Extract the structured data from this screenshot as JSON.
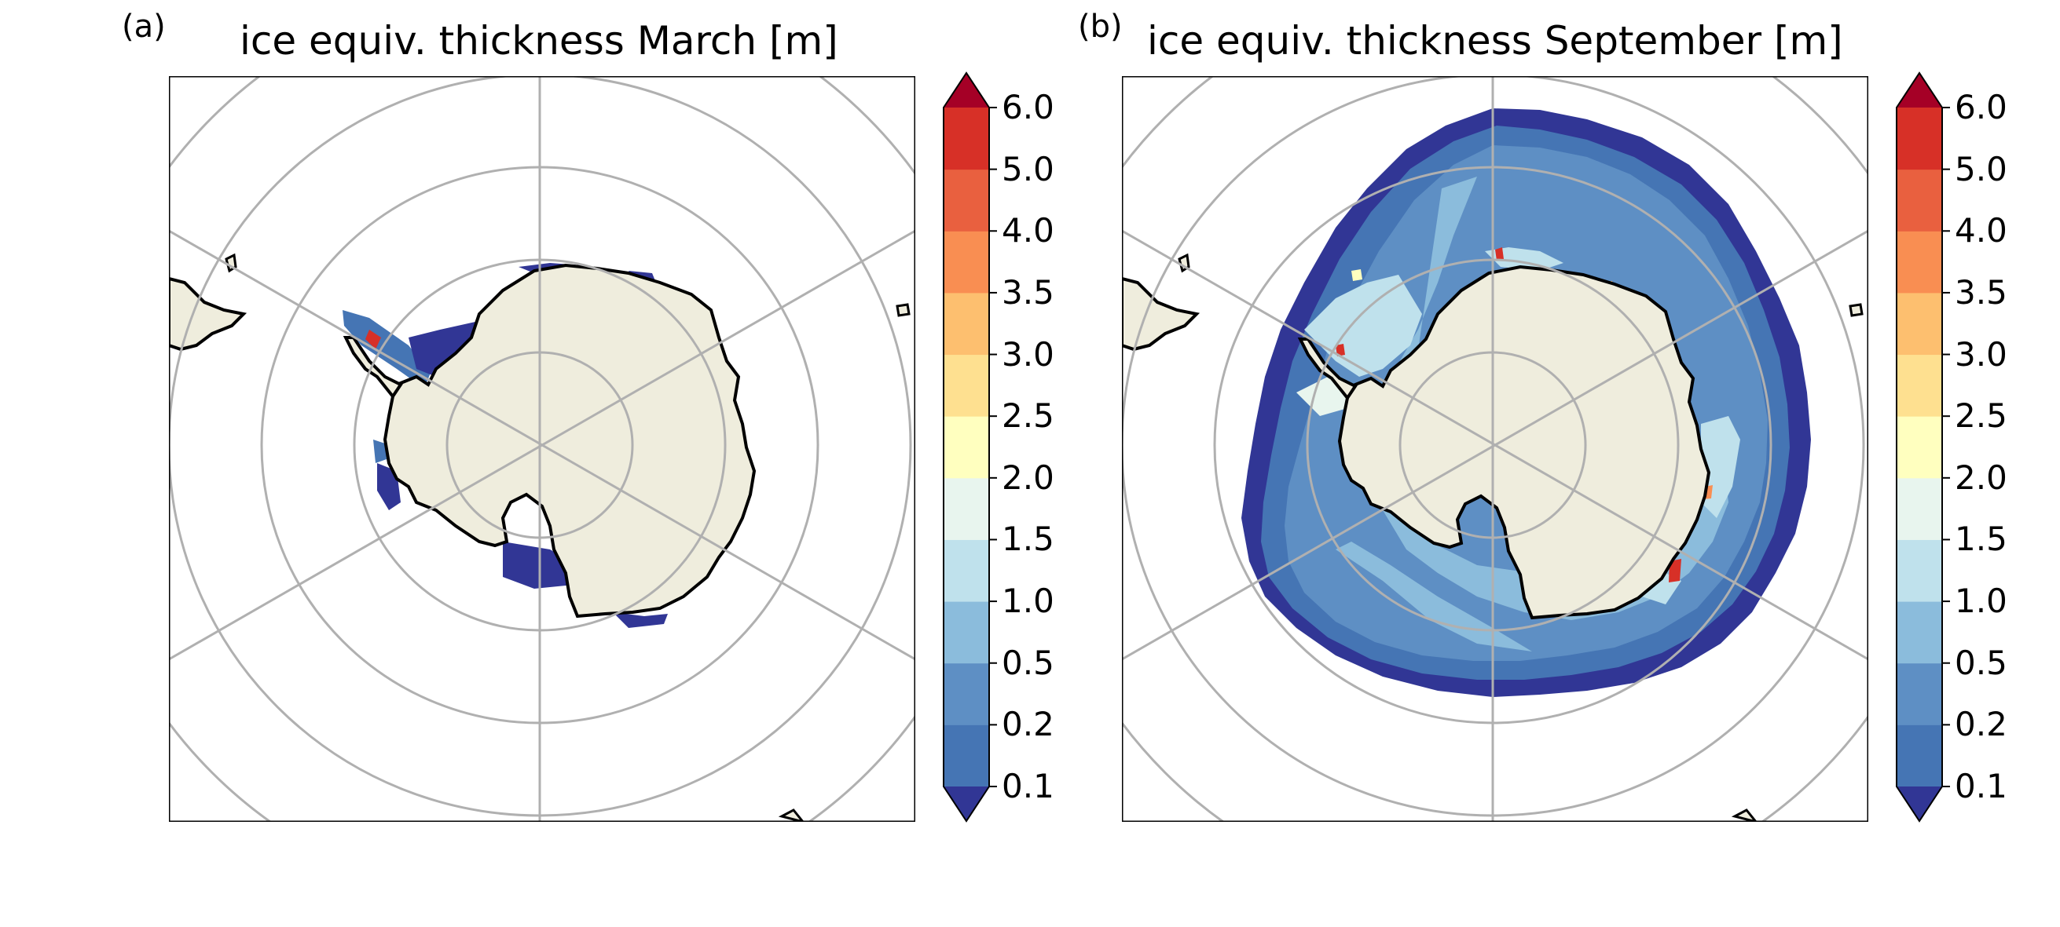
{
  "panels": [
    {
      "label": "(a)",
      "title": "ice equiv. thickness March [m]",
      "month": "March"
    },
    {
      "label": "(b)",
      "title": "ice equiv. thickness September [m]",
      "month": "September"
    }
  ],
  "colorbar": {
    "ticks": [
      "0.1",
      "0.2",
      "0.5",
      "1.0",
      "1.5",
      "2.0",
      "2.5",
      "3.0",
      "3.5",
      "4.0",
      "5.0",
      "6.0"
    ],
    "extend": "both",
    "colors": [
      "#313695",
      "#4575b4",
      "#5e8fc4",
      "#8bbcdc",
      "#bfe1ec",
      "#e8f5ee",
      "#ffffbf",
      "#fee090",
      "#fdbf6f",
      "#f98e52",
      "#e9603f",
      "#d73027",
      "#a50026"
    ]
  },
  "colors": {
    "land": "#efeddd",
    "coastline": "#000000",
    "gridlines": "#b0b0b0",
    "frame": "#000000"
  }
}
